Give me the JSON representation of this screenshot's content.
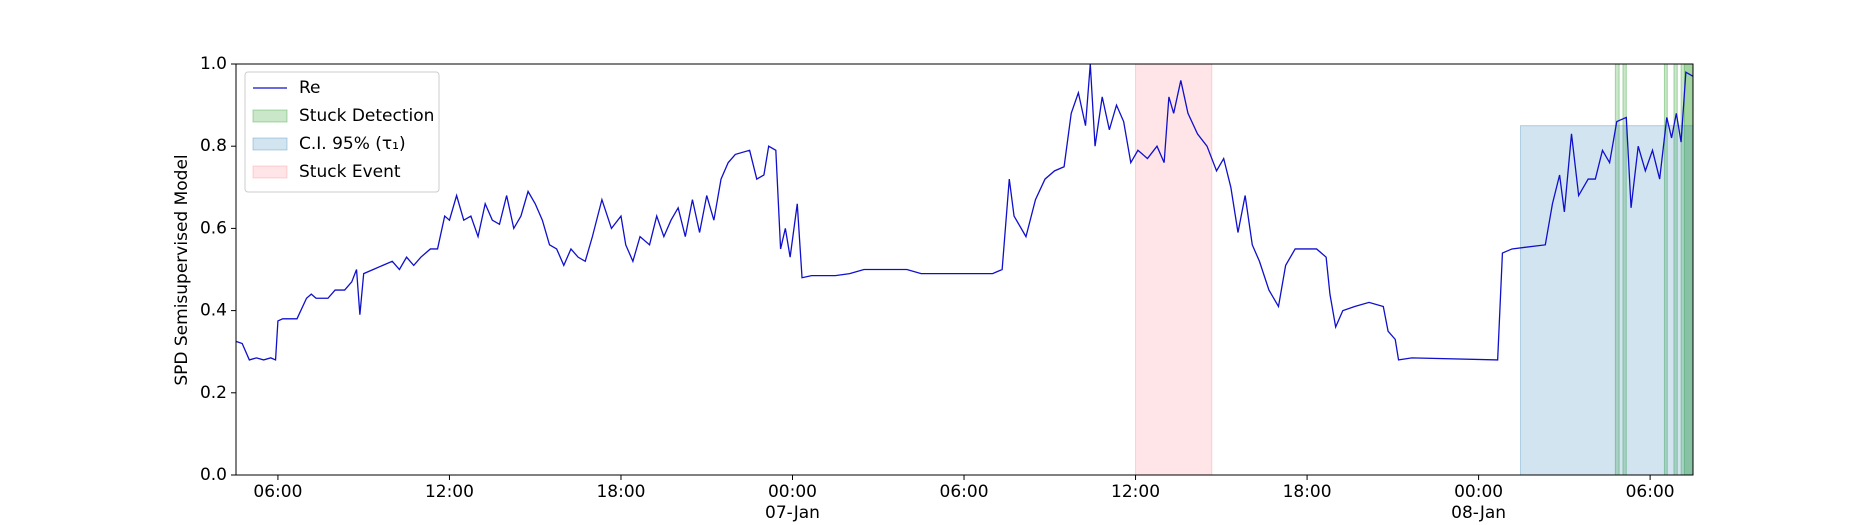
{
  "chart_data": {
    "type": "line",
    "y_label": "SPD Semisupervised Model",
    "xlim": [
      "1900-01-06T04:32",
      "1900-01-08T07:30"
    ],
    "ylim": [
      0,
      1
    ],
    "yticks": [
      {
        "value": 0,
        "label": "0.0"
      },
      0.2,
      0.4,
      0.6,
      0.8,
      {
        "value": 1,
        "label": "1.0"
      }
    ],
    "xticks": [
      {
        "value": "1900-01-06T06:00",
        "label": "06:00"
      },
      {
        "value": "1900-01-06T12:00",
        "label": "12:00"
      },
      {
        "value": "1900-01-06T18:00",
        "label": "18:00"
      },
      {
        "value": "1900-01-07T00:00",
        "label": "00:00\n07-Jan\n1900"
      },
      {
        "value": "1900-01-07T06:00",
        "label": "06:00"
      },
      {
        "value": "1900-01-07T12:00",
        "label": "12:00"
      },
      {
        "value": "1900-01-07T18:00",
        "label": "18:00"
      },
      {
        "value": "1900-01-08T00:00",
        "label": "00:00\n08-Jan"
      },
      {
        "value": "1900-01-08T06:00",
        "label": "06:00"
      }
    ],
    "legend": "upper left",
    "x": [
      "1900-01-06T04:32",
      "1900-01-06T04:45",
      "1900-01-06T05:00",
      "1900-01-06T05:15",
      "1900-01-06T05:30",
      "1900-01-06T05:45",
      "1900-01-06T05:55",
      "1900-01-06T06:00",
      "1900-01-06T06:10",
      "1900-01-06T06:40",
      "1900-01-06T07:00",
      "1900-01-06T07:10",
      "1900-01-06T07:20",
      "1900-01-06T07:45",
      "1900-01-06T08:00",
      "1900-01-06T08:20",
      "1900-01-06T08:35",
      "1900-01-06T08:45",
      "1900-01-06T08:52",
      "1900-01-06T09:00",
      "1900-01-06T09:20",
      "1900-01-06T09:40",
      "1900-01-06T10:00",
      "1900-01-06T10:15",
      "1900-01-06T10:30",
      "1900-01-06T10:45",
      "1900-01-06T11:00",
      "1900-01-06T11:20",
      "1900-01-06T11:35",
      "1900-01-06T11:50",
      "1900-01-06T12:00",
      "1900-01-06T12:15",
      "1900-01-06T12:30",
      "1900-01-06T12:45",
      "1900-01-06T13:00",
      "1900-01-06T13:15",
      "1900-01-06T13:30",
      "1900-01-06T13:45",
      "1900-01-06T14:00",
      "1900-01-06T14:15",
      "1900-01-06T14:30",
      "1900-01-06T14:45",
      "1900-01-06T15:00",
      "1900-01-06T15:15",
      "1900-01-06T15:30",
      "1900-01-06T15:45",
      "1900-01-06T16:00",
      "1900-01-06T16:15",
      "1900-01-06T16:30",
      "1900-01-06T16:45",
      "1900-01-06T17:00",
      "1900-01-06T17:20",
      "1900-01-06T17:40",
      "1900-01-06T18:00",
      "1900-01-06T18:10",
      "1900-01-06T18:25",
      "1900-01-06T18:40",
      "1900-01-06T19:00",
      "1900-01-06T19:15",
      "1900-01-06T19:30",
      "1900-01-06T19:45",
      "1900-01-06T20:00",
      "1900-01-06T20:15",
      "1900-01-06T20:30",
      "1900-01-06T20:45",
      "1900-01-06T21:00",
      "1900-01-06T21:15",
      "1900-01-06T21:30",
      "1900-01-06T21:45",
      "1900-01-06T22:00",
      "1900-01-06T22:30",
      "1900-01-06T22:45",
      "1900-01-06T23:00",
      "1900-01-06T23:10",
      "1900-01-06T23:25",
      "1900-01-06T23:35",
      "1900-01-06T23:45",
      "1900-01-06T23:55",
      "1900-01-07T00:10",
      "1900-01-07T00:20",
      "1900-01-07T00:40",
      "1900-01-07T01:30",
      "1900-01-07T02:00",
      "1900-01-07T02:30",
      "1900-01-07T03:00",
      "1900-01-07T04:00",
      "1900-01-07T04:30",
      "1900-01-07T05:30",
      "1900-01-07T07:00",
      "1900-01-07T07:20",
      "1900-01-07T07:35",
      "1900-01-07T07:45",
      "1900-01-07T08:10",
      "1900-01-07T08:30",
      "1900-01-07T08:50",
      "1900-01-07T09:10",
      "1900-01-07T09:30",
      "1900-01-07T09:45",
      "1900-01-07T10:00",
      "1900-01-07T10:15",
      "1900-01-07T10:25",
      "1900-01-07T10:35",
      "1900-01-07T10:50",
      "1900-01-07T11:05",
      "1900-01-07T11:20",
      "1900-01-07T11:35",
      "1900-01-07T11:50",
      "1900-01-07T12:05",
      "1900-01-07T12:25",
      "1900-01-07T12:45",
      "1900-01-07T13:00",
      "1900-01-07T13:10",
      "1900-01-07T13:20",
      "1900-01-07T13:35",
      "1900-01-07T13:50",
      "1900-01-07T14:10",
      "1900-01-07T14:30",
      "1900-01-07T14:50",
      "1900-01-07T15:05",
      "1900-01-07T15:20",
      "1900-01-07T15:35",
      "1900-01-07T15:50",
      "1900-01-07T16:05",
      "1900-01-07T16:20",
      "1900-01-07T16:40",
      "1900-01-07T17:00",
      "1900-01-07T17:15",
      "1900-01-07T17:35",
      "1900-01-07T18:20",
      "1900-01-07T18:40",
      "1900-01-07T18:48",
      "1900-01-07T19:00",
      "1900-01-07T19:15",
      "1900-01-07T19:40",
      "1900-01-07T20:10",
      "1900-01-07T20:40",
      "1900-01-07T20:50",
      "1900-01-07T21:05",
      "1900-01-07T21:12",
      "1900-01-07T21:40",
      "1900-01-08T00:40",
      "1900-01-08T00:50",
      "1900-01-08T01:10",
      "1900-01-08T02:20",
      "1900-01-08T02:35",
      "1900-01-08T02:50",
      "1900-01-08T03:00",
      "1900-01-08T03:15",
      "1900-01-08T03:30",
      "1900-01-08T03:50",
      "1900-01-08T04:05",
      "1900-01-08T04:20",
      "1900-01-08T04:35",
      "1900-01-08T04:50",
      "1900-01-08T05:10",
      "1900-01-08T05:20",
      "1900-01-08T05:35",
      "1900-01-08T05:50",
      "1900-01-08T06:05",
      "1900-01-08T06:20",
      "1900-01-08T06:35",
      "1900-01-08T06:45",
      "1900-01-08T06:55",
      "1900-01-08T07:05",
      "1900-01-08T07:15",
      "1900-01-08T07:30"
    ],
    "series": [
      {
        "name": "Re",
        "color": "#1010cc",
        "values": [
          0.325,
          0.32,
          0.28,
          0.285,
          0.28,
          0.285,
          0.28,
          0.375,
          0.38,
          0.38,
          0.43,
          0.44,
          0.43,
          0.43,
          0.45,
          0.45,
          0.47,
          0.5,
          0.39,
          0.49,
          0.5,
          0.51,
          0.52,
          0.5,
          0.53,
          0.51,
          0.53,
          0.55,
          0.55,
          0.63,
          0.62,
          0.68,
          0.62,
          0.63,
          0.58,
          0.66,
          0.62,
          0.61,
          0.68,
          0.6,
          0.63,
          0.69,
          0.66,
          0.62,
          0.56,
          0.55,
          0.51,
          0.55,
          0.53,
          0.52,
          0.58,
          0.67,
          0.6,
          0.63,
          0.56,
          0.52,
          0.58,
          0.56,
          0.63,
          0.58,
          0.62,
          0.65,
          0.58,
          0.67,
          0.59,
          0.68,
          0.62,
          0.72,
          0.76,
          0.78,
          0.79,
          0.72,
          0.73,
          0.8,
          0.79,
          0.55,
          0.6,
          0.53,
          0.66,
          0.48,
          0.485,
          0.485,
          0.49,
          0.5,
          0.5,
          0.5,
          0.49,
          0.49,
          0.49,
          0.5,
          0.72,
          0.63,
          0.58,
          0.67,
          0.72,
          0.74,
          0.75,
          0.88,
          0.93,
          0.85,
          1.0,
          0.8,
          0.92,
          0.84,
          0.9,
          0.86,
          0.76,
          0.79,
          0.77,
          0.8,
          0.76,
          0.92,
          0.88,
          0.96,
          0.88,
          0.83,
          0.8,
          0.74,
          0.77,
          0.7,
          0.59,
          0.68,
          0.56,
          0.52,
          0.45,
          0.41,
          0.51,
          0.55,
          0.55,
          0.53,
          0.44,
          0.36,
          0.4,
          0.41,
          0.42,
          0.41,
          0.35,
          0.33,
          0.28,
          0.285,
          0.28,
          0.54,
          0.55,
          0.56,
          0.66,
          0.73,
          0.64,
          0.83,
          0.68,
          0.72,
          0.72,
          0.79,
          0.76,
          0.86,
          0.87,
          0.65,
          0.8,
          0.74,
          0.79,
          0.72,
          0.87,
          0.82,
          0.88,
          0.81,
          0.98,
          0.97
        ]
      }
    ],
    "shaded_regions": [
      {
        "name": "Stuck Detection",
        "color": "#2ca02c",
        "opacity": 0.25,
        "ranges": [
          {
            "start": "1900-01-08T04:47",
            "end": "1900-01-08T04:55"
          },
          {
            "start": "1900-01-08T05:03",
            "end": "1900-01-08T05:10"
          },
          {
            "start": "1900-01-08T06:30",
            "end": "1900-01-08T06:36"
          },
          {
            "start": "1900-01-08T06:50",
            "end": "1900-01-08T06:57"
          },
          {
            "start": "1900-01-08T07:05",
            "end": "1900-01-08T07:30"
          },
          {
            "start": "1900-01-08T07:12",
            "end": "1900-01-08T07:30"
          }
        ]
      },
      {
        "name": "C.I. 95% (τ₁)",
        "color": "#1f77b4",
        "opacity": 0.2,
        "ranges": [
          {
            "start": "1900-01-08T01:28",
            "end": "1900-01-08T07:30",
            "top": 0.85
          }
        ]
      },
      {
        "name": "Stuck Event",
        "color": "#ff3344",
        "opacity": 0.13,
        "ranges": [
          {
            "start": "1900-01-07T12:00",
            "end": "1900-01-07T14:40"
          }
        ]
      }
    ]
  }
}
